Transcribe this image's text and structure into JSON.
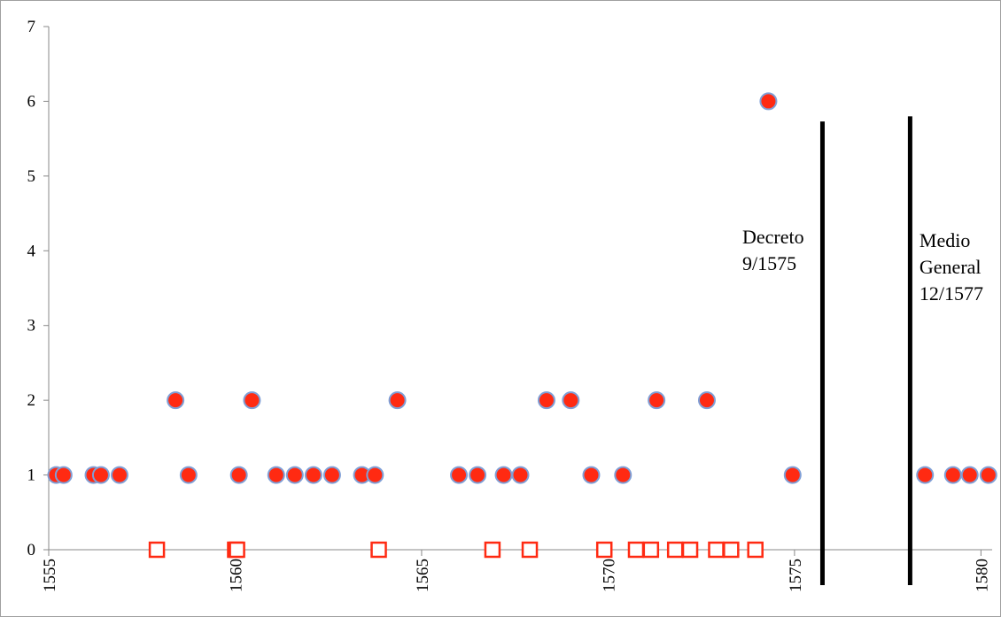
{
  "chart_data": {
    "type": "scatter",
    "xlim": [
      1555,
      1580.3
    ],
    "ylim": [
      0,
      7
    ],
    "x_ticks": [
      1555,
      1560,
      1565,
      1570,
      1575,
      1580
    ],
    "y_ticks": [
      0,
      1,
      2,
      3,
      4,
      5,
      6,
      7
    ],
    "grid": false,
    "legend": "none",
    "colors": {
      "marker_fill": "#ff2a12",
      "marker_edge": "#7f9fd6",
      "square_edge": "#ff2a12",
      "axis": "#888888",
      "line": "#000000"
    },
    "series": [
      {
        "marker": "circle",
        "x": [
          1555.2,
          1555.4,
          1556.2,
          1556.4,
          1556.9,
          1558.4,
          1558.75,
          1560.1,
          1560.45,
          1561.1,
          1561.6,
          1562.1,
          1562.6,
          1563.4,
          1563.75,
          1564.35,
          1566.0,
          1566.5,
          1567.2,
          1567.65,
          1568.35,
          1569.0,
          1569.55,
          1570.4,
          1571.3,
          1572.65,
          1574.3,
          1574.95,
          1578.5,
          1579.25,
          1579.7,
          1580.2
        ],
        "y": [
          1,
          1,
          1,
          1,
          1,
          2,
          1,
          1,
          2,
          1,
          1,
          1,
          1,
          1,
          1,
          2,
          1,
          1,
          1,
          1,
          2,
          2,
          1,
          1,
          2,
          2,
          6,
          1,
          1,
          1,
          1,
          1
        ]
      },
      {
        "marker": "open-square",
        "x": [
          1557.9,
          1560.0,
          1560.05,
          1563.85,
          1566.9,
          1567.9,
          1569.9,
          1570.75,
          1571.15,
          1571.8,
          1572.2,
          1572.9,
          1573.3,
          1573.95
        ],
        "y": [
          0,
          0,
          0,
          0,
          0,
          0,
          0,
          0,
          0,
          0,
          0,
          0,
          0,
          0
        ]
      }
    ],
    "vertical_lines": [
      {
        "x": 1575.75,
        "y_top": 5.73
      },
      {
        "x": 1578.1,
        "y_top": 5.8
      }
    ],
    "annotations": [
      {
        "lines": [
          "Decreto",
          "9/1575"
        ],
        "x": 1573.6,
        "y": 4.1
      },
      {
        "lines": [
          "Medio",
          "General",
          "12/1577"
        ],
        "x": 1578.35,
        "y": 4.05
      }
    ]
  }
}
